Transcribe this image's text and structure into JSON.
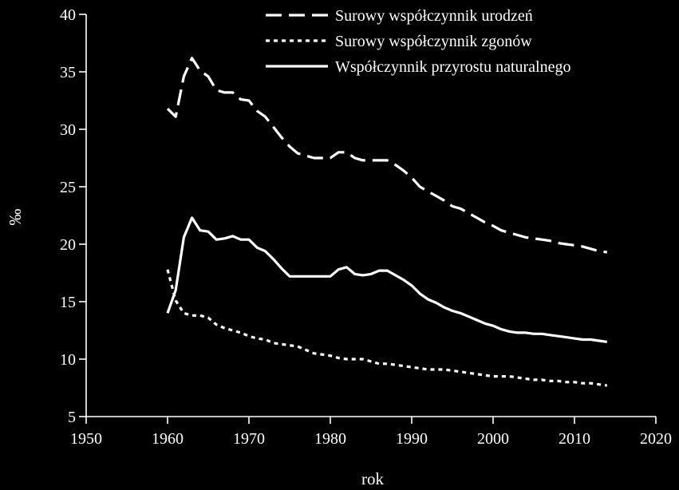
{
  "chart_data": {
    "type": "line",
    "xlabel": "rok",
    "ylabel": "‰",
    "xlim": [
      1950,
      2020
    ],
    "ylim": [
      5,
      40
    ],
    "xticks": [
      1950,
      1960,
      1970,
      1980,
      1990,
      2000,
      2010,
      2020
    ],
    "yticks": [
      5,
      10,
      15,
      20,
      25,
      30,
      35,
      40
    ],
    "grid": false,
    "legend_position": "top-right",
    "series": [
      {
        "name": "Surowy współczynnik urodzeń",
        "style": "dashed",
        "color": "#ffffff",
        "x": [
          1960,
          1961,
          1962,
          1963,
          1964,
          1965,
          1966,
          1967,
          1968,
          1969,
          1970,
          1971,
          1972,
          1973,
          1974,
          1975,
          1976,
          1977,
          1978,
          1979,
          1980,
          1981,
          1982,
          1983,
          1984,
          1985,
          1986,
          1987,
          1988,
          1989,
          1990,
          1991,
          1992,
          1993,
          1994,
          1995,
          1996,
          1997,
          1998,
          1999,
          2000,
          2001,
          2002,
          2003,
          2004,
          2005,
          2006,
          2007,
          2008,
          2009,
          2010,
          2011,
          2012,
          2013,
          2014
        ],
        "y": [
          31.8,
          31.1,
          34.6,
          36.2,
          35.1,
          34.6,
          33.4,
          33.2,
          33.2,
          32.6,
          32.5,
          31.6,
          31.1,
          30.2,
          29.3,
          28.5,
          27.9,
          27.7,
          27.5,
          27.5,
          27.5,
          28.0,
          28.0,
          27.5,
          27.3,
          27.3,
          27.3,
          27.3,
          26.9,
          26.4,
          25.8,
          25.0,
          24.6,
          24.2,
          23.8,
          23.3,
          23.1,
          22.7,
          22.3,
          21.9,
          21.6,
          21.2,
          21.0,
          20.8,
          20.6,
          20.5,
          20.4,
          20.3,
          20.1,
          20.0,
          19.9,
          19.8,
          19.6,
          19.4,
          19.3
        ]
      },
      {
        "name": "Surowy współczynnik zgonów",
        "style": "dotted",
        "color": "#ffffff",
        "x": [
          1960,
          1961,
          1962,
          1963,
          1964,
          1965,
          1966,
          1967,
          1968,
          1969,
          1970,
          1971,
          1972,
          1973,
          1974,
          1975,
          1976,
          1977,
          1978,
          1979,
          1980,
          1981,
          1982,
          1983,
          1984,
          1985,
          1986,
          1987,
          1988,
          1989,
          1990,
          1991,
          1992,
          1993,
          1994,
          1995,
          1996,
          1997,
          1998,
          1999,
          2000,
          2001,
          2002,
          2003,
          2004,
          2005,
          2006,
          2007,
          2008,
          2009,
          2010,
          2011,
          2012,
          2013,
          2014
        ],
        "y": [
          17.8,
          15.1,
          14.0,
          13.8,
          13.8,
          13.6,
          13.0,
          12.7,
          12.5,
          12.3,
          12.0,
          11.8,
          11.7,
          11.4,
          11.3,
          11.2,
          11.1,
          10.8,
          10.5,
          10.4,
          10.3,
          10.1,
          10.0,
          10.0,
          10.0,
          9.8,
          9.6,
          9.6,
          9.5,
          9.4,
          9.3,
          9.2,
          9.1,
          9.1,
          9.1,
          9.0,
          8.9,
          8.8,
          8.7,
          8.6,
          8.5,
          8.5,
          8.5,
          8.4,
          8.3,
          8.2,
          8.2,
          8.1,
          8.1,
          8.0,
          8.0,
          7.9,
          7.9,
          7.8,
          7.7
        ]
      },
      {
        "name": "Współczynnik przyrostu naturalnego",
        "style": "solid",
        "color": "#ffffff",
        "x": [
          1960,
          1961,
          1962,
          1963,
          1964,
          1965,
          1966,
          1967,
          1968,
          1969,
          1970,
          1971,
          1972,
          1973,
          1974,
          1975,
          1976,
          1977,
          1978,
          1979,
          1980,
          1981,
          1982,
          1983,
          1984,
          1985,
          1986,
          1987,
          1988,
          1989,
          1990,
          1991,
          1992,
          1993,
          1994,
          1995,
          1996,
          1997,
          1998,
          1999,
          2000,
          2001,
          2002,
          2003,
          2004,
          2005,
          2006,
          2007,
          2008,
          2009,
          2010,
          2011,
          2012,
          2013,
          2014
        ],
        "y": [
          14.0,
          16.0,
          20.6,
          22.3,
          21.2,
          21.1,
          20.4,
          20.5,
          20.7,
          20.4,
          20.4,
          19.7,
          19.4,
          18.7,
          17.9,
          17.2,
          17.2,
          17.2,
          17.2,
          17.2,
          17.2,
          17.8,
          18.0,
          17.4,
          17.3,
          17.4,
          17.7,
          17.7,
          17.3,
          16.9,
          16.4,
          15.7,
          15.2,
          14.9,
          14.5,
          14.2,
          14.0,
          13.7,
          13.4,
          13.1,
          12.9,
          12.6,
          12.4,
          12.3,
          12.3,
          12.2,
          12.2,
          12.1,
          12.0,
          11.9,
          11.8,
          11.7,
          11.7,
          11.6,
          11.5
        ]
      }
    ]
  }
}
